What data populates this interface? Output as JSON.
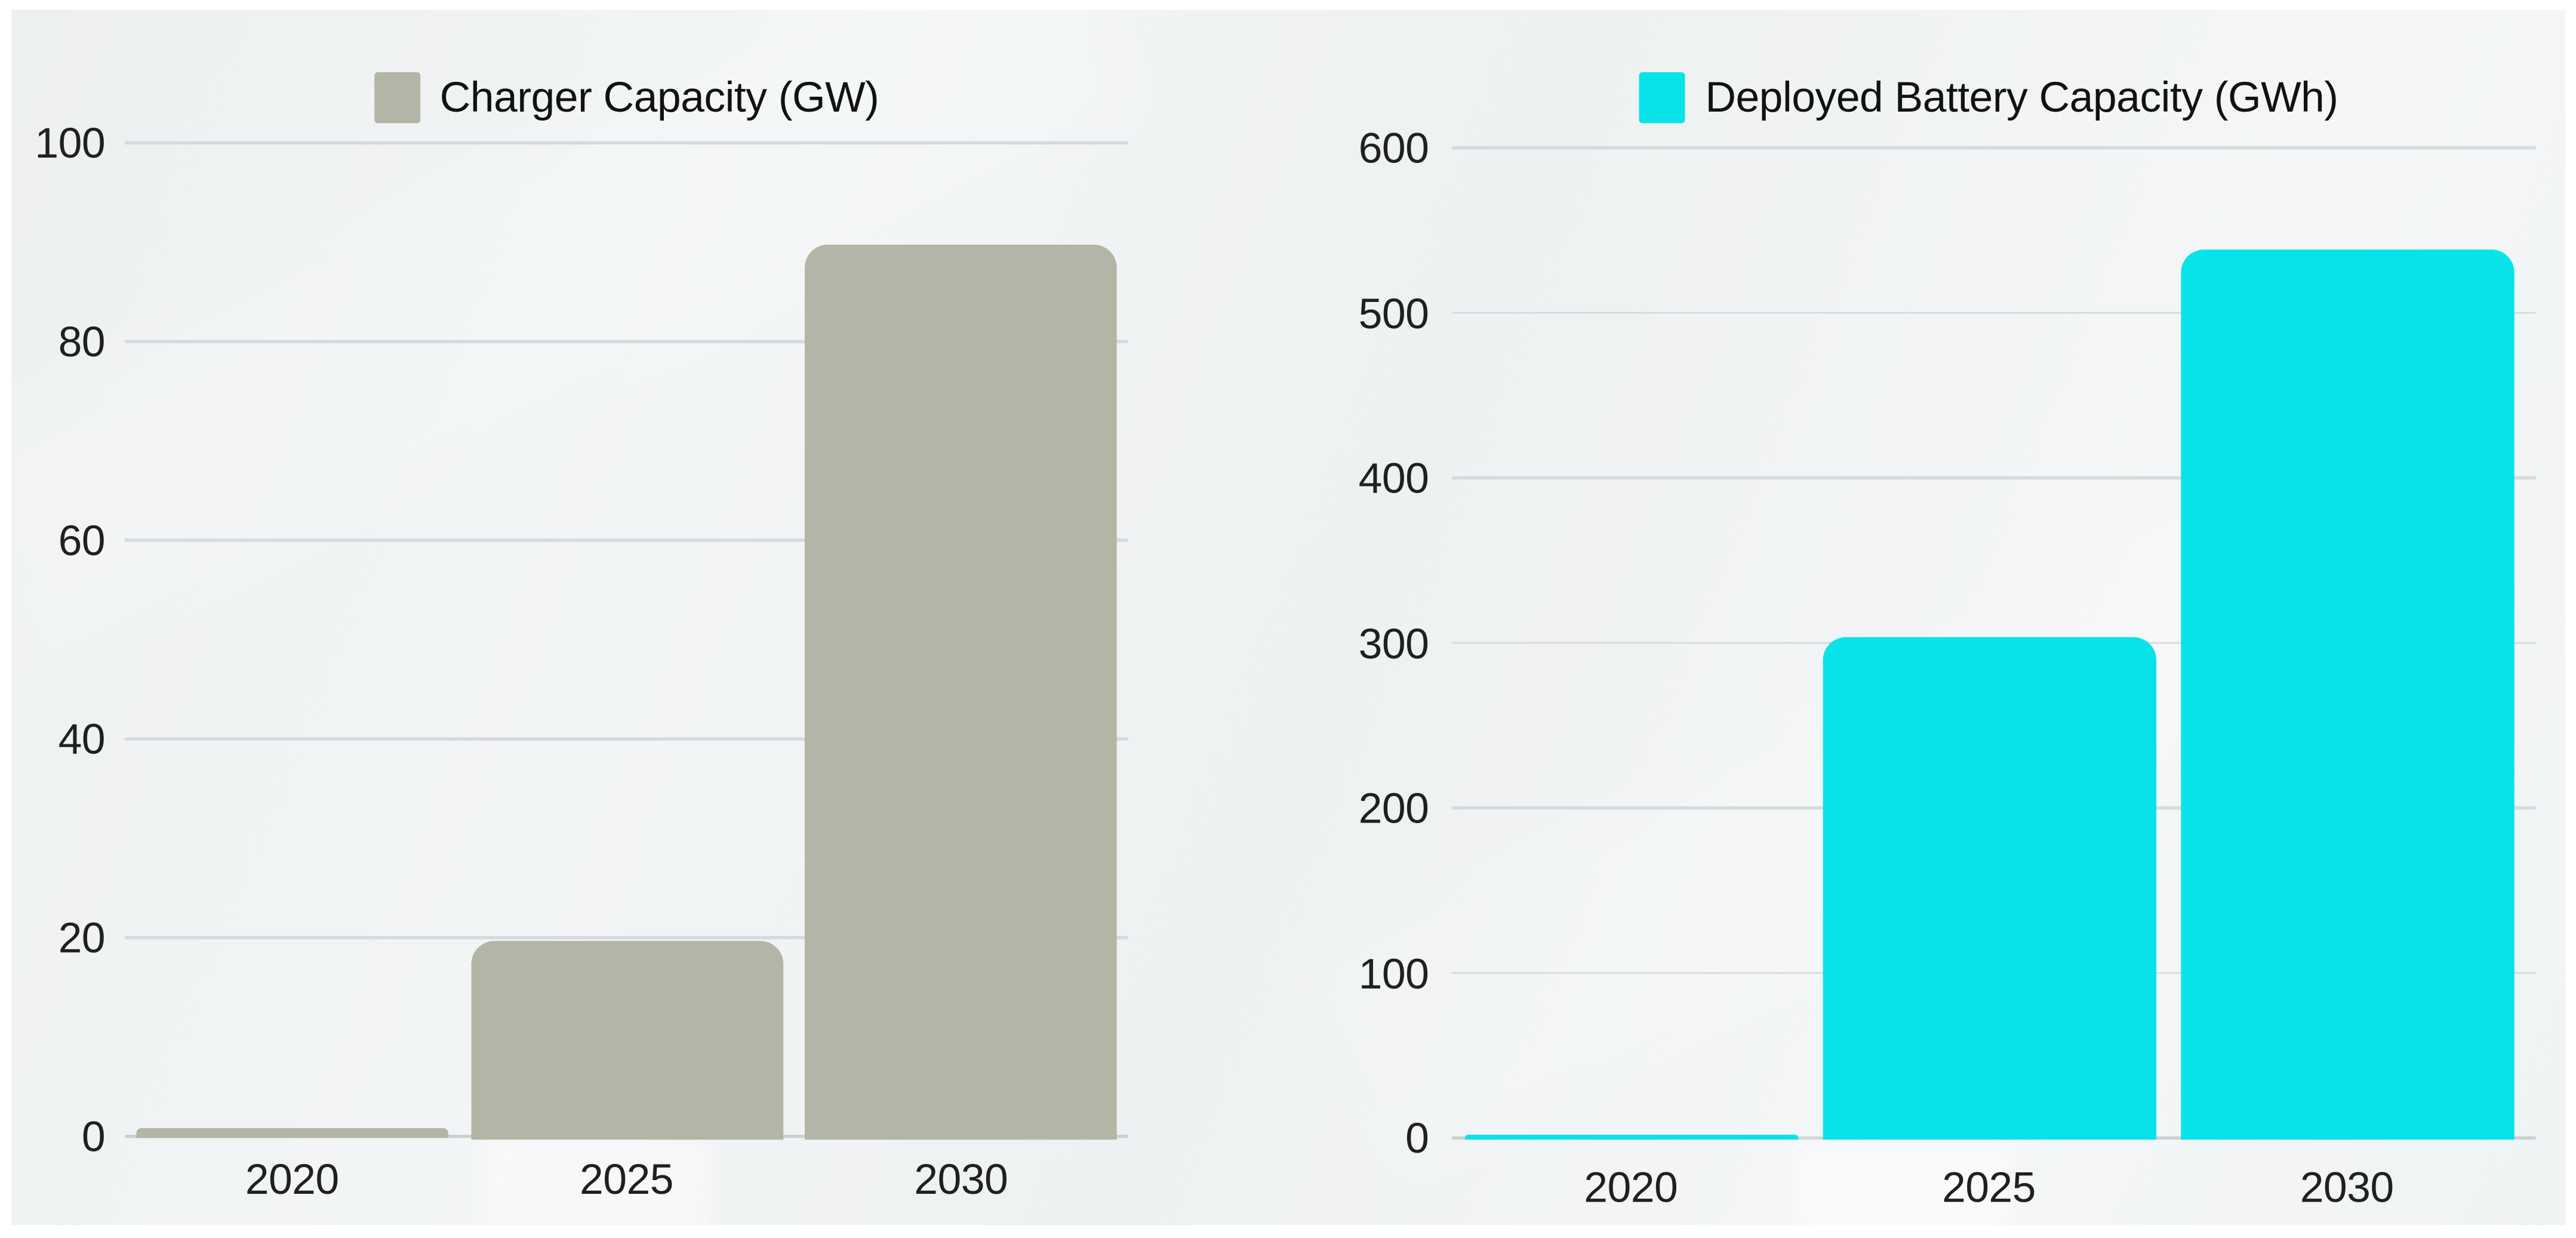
{
  "chart_data": [
    {
      "type": "bar",
      "title": "Charger Capacity (GW)",
      "categories": [
        "2020",
        "2025",
        "2030"
      ],
      "series": [
        {
          "name": "Charger Capacity (GW)",
          "values": [
            1,
            20,
            90
          ],
          "color": "#b3b5a6"
        }
      ],
      "ylim": [
        0,
        100
      ],
      "ytick_step": 20,
      "ytick_labels": [
        "0",
        "20",
        "40",
        "60",
        "80",
        "100"
      ],
      "xlabel": "",
      "ylabel": "",
      "grid": true,
      "legend_position": "top-center"
    },
    {
      "type": "bar",
      "title": "Deployed Battery Capacity (GWh)",
      "categories": [
        "2020",
        "2025",
        "2030"
      ],
      "series": [
        {
          "name": "Deployed Battery Capacity (GWh)",
          "values": [
            3,
            305,
            540
          ],
          "color": "#07e3e9"
        }
      ],
      "ylim": [
        0,
        600
      ],
      "ytick_step": 100,
      "ytick_labels": [
        "0",
        "100",
        "200",
        "300",
        "400",
        "500",
        "600"
      ],
      "xlabel": "",
      "ylabel": "",
      "grid": true,
      "legend_position": "top-center"
    }
  ],
  "colors": {
    "page_background": "#ffffff",
    "panel_background": "#f0f3f4",
    "gridline": "#d6dadc",
    "zero_line": "#cbd0d3",
    "axis_text": "#202020",
    "legend_text": "#121212"
  }
}
